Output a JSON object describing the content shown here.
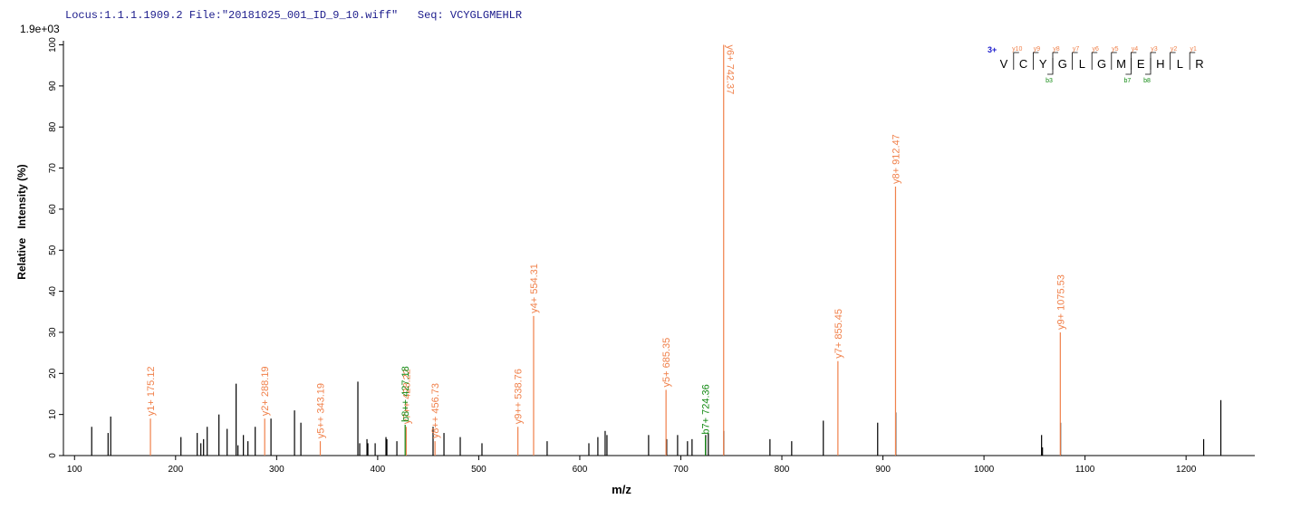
{
  "chart_data": {
    "type": "stem",
    "header": "Locus:1.1.1.1909.2 File:\"20181025_001_ID_9_10.wiff\"   Seq: VCYGLGMEHLR",
    "scale_label": "1.9e+03",
    "xlabel": "m/z",
    "ylabel": "Relative   Intensity (%)",
    "xlim": [
      89,
      1268
    ],
    "ylim": [
      0,
      101
    ],
    "xticks": [
      100,
      200,
      300,
      400,
      500,
      600,
      700,
      800,
      900,
      1000,
      1100,
      1200
    ],
    "yticks": [
      0,
      10,
      20,
      30,
      40,
      50,
      60,
      70,
      80,
      90,
      100
    ],
    "series": [
      {
        "color": "#000000",
        "x": [
          117.0,
          133.2,
          135.8,
          205.3,
          221.4,
          225.0,
          227.7,
          231.3,
          242.9,
          251.0,
          259.9,
          261.7,
          267.1,
          271.6,
          278.8,
          294.4,
          317.7,
          324.0,
          380.4,
          382.2,
          389.4,
          390.3,
          397.5,
          408.2,
          409.1,
          419.0,
          454.8,
          465.6,
          481.7,
          503.2,
          567.7,
          609.0,
          617.9,
          625.1,
          626.9,
          668.1,
          686.0,
          696.8,
          706.6,
          711.1,
          724.6,
          727.2,
          742.5,
          788.2,
          809.7,
          841.0,
          894.8,
          912.7,
          1057.0,
          1057.9,
          1075.8,
          1217.4,
          1234.4
        ],
        "values": [
          7,
          5.5,
          9.5,
          4.5,
          5.5,
          3,
          4,
          7,
          10,
          6.5,
          17.5,
          2.5,
          5,
          3.5,
          7,
          9,
          11,
          8,
          18,
          3,
          4,
          3,
          3,
          4.5,
          4,
          3.5,
          7,
          5.5,
          4.5,
          3,
          3.5,
          3,
          4.5,
          6,
          5,
          5,
          4,
          5,
          3.5,
          4,
          5,
          5.5,
          6,
          4,
          3.5,
          8.5,
          8,
          10.5,
          5,
          2,
          8,
          4,
          13.5
        ]
      },
      {
        "color": "#f0804a",
        "x": [
          175.12,
          288.19,
          343.19,
          428.22,
          456.73,
          538.76,
          554.31,
          685.35,
          742.37,
          855.45,
          912.47,
          1075.53
        ],
        "values": [
          9,
          9,
          3.5,
          7,
          3.5,
          7,
          34,
          16,
          100,
          23,
          65.5,
          30
        ],
        "labels": [
          "y1+ 175.12",
          "y2+ 288.19",
          "y5++ 343.19",
          "y7++ 428.22",
          "y8++ 456.73",
          "y9++ 538.76",
          "y4+ 554.31",
          "y5+ 685.35",
          "y6+ 742.37",
          "y7+ 855.45",
          "y8+ 912.47",
          "y9+ 1075.53"
        ]
      },
      {
        "color": "#138a13",
        "x": [
          427.18,
          724.36
        ],
        "values": [
          7.5,
          4.5
        ],
        "labels": [
          "b8++ 427.18",
          "b7+ 724.36"
        ]
      }
    ],
    "sequence_map": {
      "charge": "3+",
      "residues": [
        "V",
        "C",
        "Y",
        "G",
        "L",
        "G",
        "M",
        "E",
        "H",
        "L",
        "R"
      ],
      "y_labels": [
        "y10",
        "y9",
        "y8",
        "y7",
        "y6",
        "y5",
        "y4",
        "y3",
        "y2",
        "y1"
      ],
      "b_labels": [
        "b3",
        "b7",
        "b8"
      ]
    }
  }
}
